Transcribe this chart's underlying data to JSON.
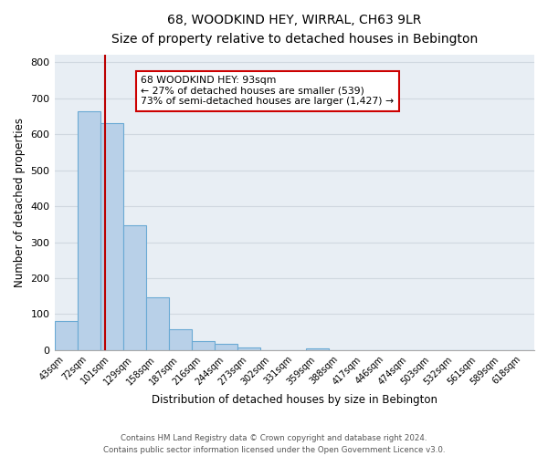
{
  "title": "68, WOODKIND HEY, WIRRAL, CH63 9LR",
  "subtitle": "Size of property relative to detached houses in Bebington",
  "bar_labels": [
    "43sqm",
    "72sqm",
    "101sqm",
    "129sqm",
    "158sqm",
    "187sqm",
    "216sqm",
    "244sqm",
    "273sqm",
    "302sqm",
    "331sqm",
    "359sqm",
    "388sqm",
    "417sqm",
    "446sqm",
    "474sqm",
    "503sqm",
    "532sqm",
    "561sqm",
    "589sqm",
    "618sqm"
  ],
  "bar_values": [
    80,
    665,
    630,
    348,
    148,
    57,
    26,
    17,
    8,
    0,
    0,
    6,
    0,
    0,
    0,
    0,
    0,
    0,
    0,
    0,
    0
  ],
  "bar_color": "#b8d0e8",
  "bar_edge_color": "#6aaad4",
  "annotation_line1": "68 WOODKIND HEY: 93sqm",
  "annotation_line2": "← 27% of detached houses are smaller (539)",
  "annotation_line3": "73% of semi-detached houses are larger (1,427) →",
  "annotation_box_color": "#ffffff",
  "annotation_box_edge": "#cc0000",
  "ylabel": "Number of detached properties",
  "xlabel": "Distribution of detached houses by size in Bebington",
  "footer_line1": "Contains HM Land Registry data © Crown copyright and database right 2024.",
  "footer_line2": "Contains public sector information licensed under the Open Government Licence v3.0.",
  "ylim": [
    0,
    820
  ],
  "yticks": [
    0,
    100,
    200,
    300,
    400,
    500,
    600,
    700,
    800
  ],
  "grid_color": "#d0d8e0",
  "bg_color": "#e8eef4",
  "red_line_color": "#bb0000",
  "red_line_x": 1.724
}
